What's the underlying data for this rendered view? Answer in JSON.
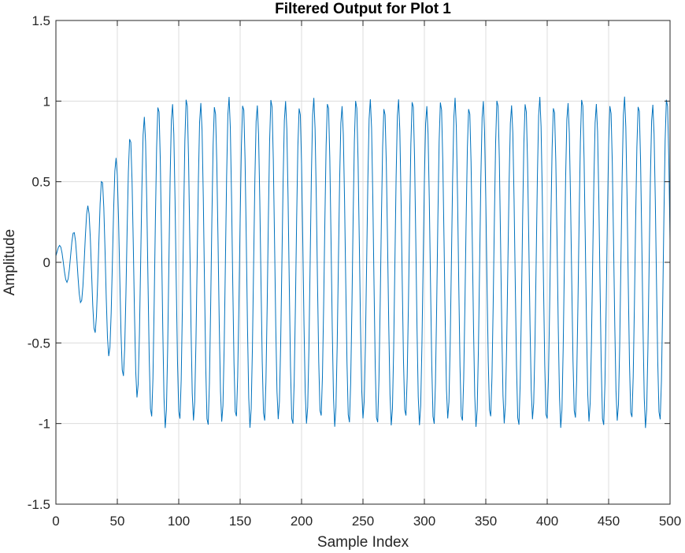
{
  "chart_data": {
    "type": "line",
    "title": "Filtered Output for Plot 1",
    "xlabel": "Sample Index",
    "ylabel": "Amplitude",
    "xlim": [
      0,
      500
    ],
    "ylim": [
      -1.5,
      1.5
    ],
    "xticks": [
      0,
      50,
      100,
      150,
      200,
      250,
      300,
      350,
      400,
      450,
      500
    ],
    "yticks": [
      -1.5,
      -1,
      -0.5,
      0,
      0.5,
      1,
      1.5
    ],
    "xtick_labels": [
      "0",
      "50",
      "100",
      "150",
      "200",
      "250",
      "300",
      "350",
      "400",
      "450",
      "500"
    ],
    "ytick_labels": [
      "-1.5",
      "-1",
      "-0.5",
      "0",
      "0.5",
      "1",
      "1.5"
    ],
    "grid": true,
    "series": [
      {
        "color": "#0072bd",
        "sample_count": 501,
        "period_samples": 11.5,
        "steady_amplitude": 1.0,
        "transient_end_sample": 80,
        "envelope": {
          "x": [
            0,
            10,
            20,
            30,
            40,
            50,
            60,
            70,
            80
          ],
          "y": [
            0.05,
            0.14,
            0.25,
            0.42,
            0.55,
            0.66,
            0.78,
            0.88,
            1.0
          ]
        }
      }
    ]
  }
}
